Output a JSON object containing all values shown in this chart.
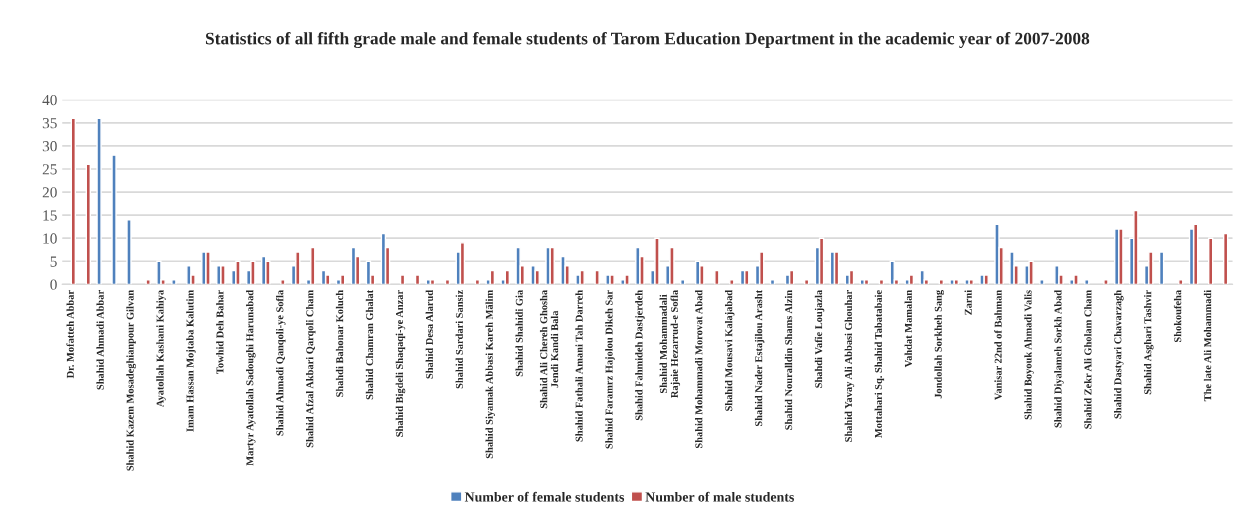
{
  "chart_data": {
    "type": "bar",
    "title": "Statistics of all fifth grade male and female students of Tarom Education Department in the academic year of 2007-2008",
    "categories": [
      "Dr. Mofatteh Abbar",
      null,
      "Shahid Ahmadi Abbar",
      null,
      "Shahid Kazem Mosadeghianpour Gilvan",
      null,
      "Ayatollah Kashani Kahiya",
      null,
      "Imam Hassan Mojtaba Kalutim",
      null,
      "Towhid Deh Bahar",
      null,
      "Martyr Ayatollah Sadoughi Harunabad",
      null,
      "Shahid Ahmadi Qanqoli-ye Sofla",
      null,
      "Shahid Afzal Akbari Qarqoli Cham",
      null,
      "Shahdi Bahonar Koluch",
      null,
      "Shahid Chamran Ghalat",
      null,
      "Shahid Bigdeli Shaqaqi-ye Anzar",
      null,
      "Shahid Desa Alarud",
      null,
      "Shahid Sardari Sansiz",
      null,
      "Shahid Siyamak Abbasi Kareh Mālim",
      null,
      "Shahid Shahidi Gia",
      null,
      "Shahid Ali Chereh Ghosha\nJendi Kandi Bala",
      null,
      "Shahid Fathali Amani Tah Darreh",
      null,
      "Shahid Faramrz Hajolou Dikeh Sar",
      null,
      "Shahid Fahmideh Dastjerdeh",
      null,
      "Shahid Mohammadali\nRajaie Hezarrud-e Sofla",
      null,
      "Shahid Mohammadi Morovat Abad",
      null,
      "Shahid Mousavi Kalajabad",
      null,
      "Shahid Nader Estajilou Arasht",
      null,
      "Shahid Nouralldin Shams Alzin",
      null,
      "Shahdi Vafie Loujazla",
      null,
      "Shahid Yavay Ali Abbasi Ghouhar",
      null,
      "Mottahari Sq. Shahid Tabatabaie",
      null,
      "Vahdat Mamalan",
      null,
      "Jondollah Sorkheh Sang",
      null,
      "Zarni",
      null,
      "Vanisar 22nd of Bahman",
      null,
      "Shahid Boyouk Ahmadi Valis",
      null,
      "Shahid Diyalameh Sorkh Abad",
      null,
      "Shahid Zekr Ali Gholam Cham",
      null,
      "Shahid Dastyari Chavarzagh",
      null,
      "Shahid Asghari Tashvir",
      null,
      "Shokoufeha",
      null,
      "The late Ali Mohammadi",
      null
    ],
    "series": [
      {
        "name": "Number of female students",
        "color": "#4f81bd",
        "values": [
          null,
          null,
          36,
          28,
          14,
          null,
          5,
          1,
          4,
          7,
          4,
          3,
          3,
          6,
          null,
          4,
          1,
          3,
          1,
          8,
          5,
          11,
          null,
          null,
          1,
          null,
          7,
          null,
          1,
          1,
          8,
          4,
          8,
          6,
          2,
          null,
          2,
          1,
          8,
          3,
          4,
          1,
          5,
          null,
          null,
          3,
          4,
          1,
          2,
          null,
          8,
          7,
          2,
          1,
          null,
          5,
          1,
          3,
          null,
          1,
          1,
          2,
          13,
          7,
          4,
          1,
          4,
          1,
          1,
          null,
          12,
          10,
          4,
          7,
          null,
          12,
          null,
          null
        ]
      },
      {
        "name": "Number of male students",
        "color": "#c0504d",
        "values": [
          36,
          26,
          null,
          null,
          null,
          1,
          1,
          null,
          2,
          7,
          4,
          5,
          5,
          5,
          1,
          7,
          8,
          2,
          2,
          6,
          2,
          8,
          2,
          2,
          1,
          1,
          9,
          1,
          3,
          3,
          4,
          3,
          8,
          4,
          3,
          3,
          2,
          2,
          6,
          10,
          8,
          null,
          4,
          3,
          1,
          3,
          7,
          null,
          3,
          1,
          10,
          7,
          3,
          1,
          1,
          1,
          2,
          1,
          1,
          1,
          1,
          2,
          8,
          4,
          5,
          null,
          2,
          2,
          null,
          1,
          12,
          16,
          7,
          null,
          1,
          13,
          10,
          11
        ]
      }
    ],
    "ylim": [
      0,
      40
    ],
    "yticks": [
      0,
      5,
      10,
      15,
      20,
      25,
      30,
      35,
      40
    ],
    "grid": "y",
    "legend": "bottom"
  }
}
